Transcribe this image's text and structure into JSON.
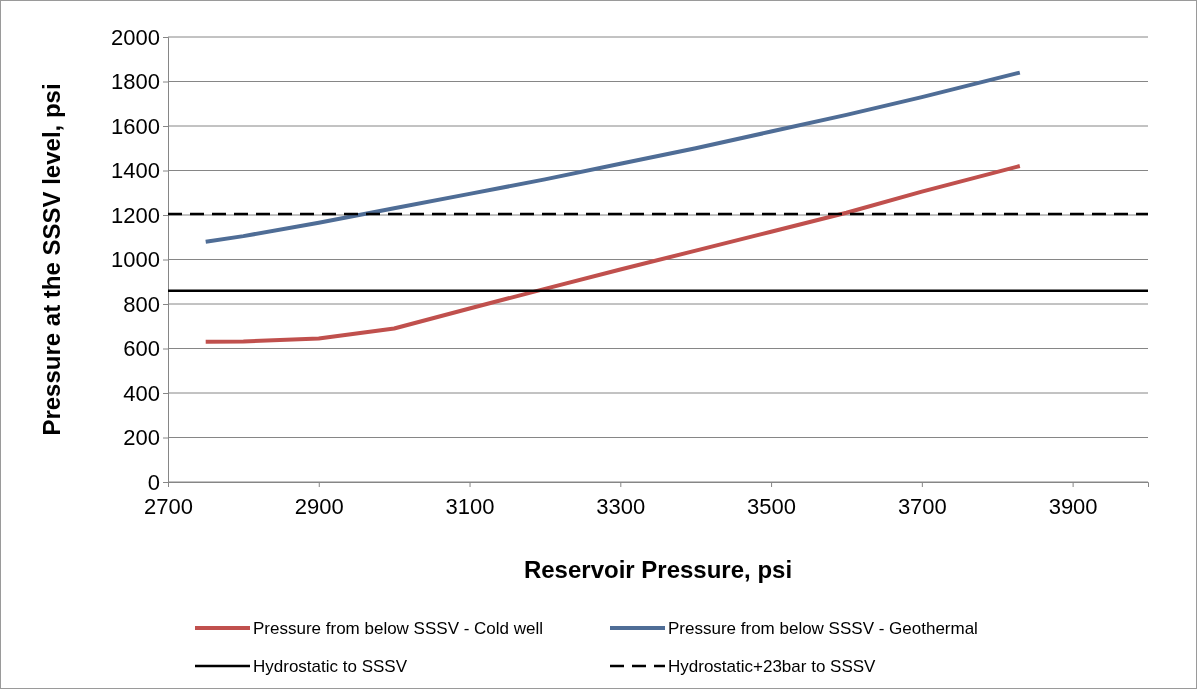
{
  "chart_data": {
    "type": "line",
    "xlabel": "Reservoir Pressure, psi",
    "ylabel": "Pressure at the SSSV level, psi",
    "xlim": [
      2700,
      4000
    ],
    "xticks": [
      2700,
      2900,
      3100,
      3300,
      3500,
      3700,
      3900
    ],
    "ylim": [
      0,
      2000
    ],
    "yticks": [
      0,
      200,
      400,
      600,
      800,
      1000,
      1200,
      1400,
      1600,
      1800,
      2000
    ],
    "grid": "y",
    "legend": "bottom",
    "marker": "none",
    "series": [
      {
        "name": "Pressure from below SSSV - Cold well",
        "color": "#c0504d",
        "line_style": "solid",
        "x": [
          2750,
          2800,
          2900,
          3000,
          3100,
          3200,
          3300,
          3400,
          3500,
          3600,
          3700,
          3830
        ],
        "values": [
          630,
          632,
          645,
          690,
          780,
          868,
          955,
          1040,
          1125,
          1210,
          1305,
          1420
        ]
      },
      {
        "name": "Pressure from below SSSV - Geothermal",
        "color": "#4f6d96",
        "line_style": "solid",
        "x": [
          2750,
          2800,
          2900,
          3000,
          3100,
          3200,
          3300,
          3400,
          3500,
          3600,
          3700,
          3830
        ],
        "values": [
          1080,
          1105,
          1165,
          1230,
          1295,
          1360,
          1430,
          1500,
          1575,
          1650,
          1730,
          1840
        ]
      },
      {
        "name": "Hydrostatic to SSSV",
        "color": "#000000",
        "line_style": "solid",
        "x": [
          2700,
          4000
        ],
        "values": [
          860,
          860
        ]
      },
      {
        "name": "Hydrostatic+23bar to SSSV",
        "color": "#000000",
        "line_style": "dashed",
        "x": [
          2700,
          4000
        ],
        "values": [
          1205,
          1205
        ]
      }
    ]
  }
}
